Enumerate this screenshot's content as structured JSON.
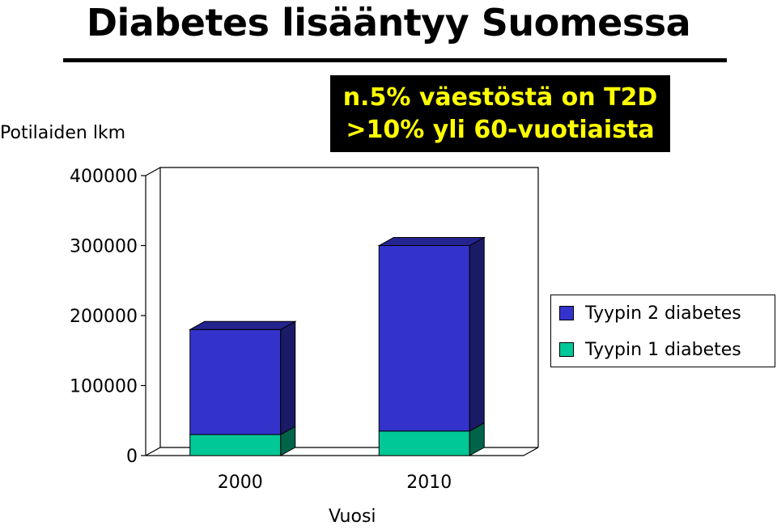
{
  "title": "Diabetes lisääntyy Suomessa",
  "callout": {
    "line1": "n.5% väestöstä on T2D",
    "line2": ">10% yli 60-vuotiaista"
  },
  "chart_data": {
    "type": "bar",
    "stacked": true,
    "three_d": true,
    "categories": [
      "2000",
      "2010"
    ],
    "series": [
      {
        "name": "Tyypin 1 diabetes",
        "values": [
          30000,
          35000
        ],
        "color": "#00c896"
      },
      {
        "name": "Tyypin 2 diabetes",
        "values": [
          150000,
          265000
        ],
        "color": "#3333cc"
      }
    ],
    "xlabel": "Vuosi",
    "ylabel": "Potilaiden lkm",
    "ylim": [
      0,
      400000
    ],
    "yticks": [
      0,
      100000,
      200000,
      300000,
      400000
    ],
    "ytick_labels": [
      "0",
      "100000",
      "200000",
      "300000",
      "400000"
    ],
    "grid": false,
    "legend_position": "right"
  },
  "legend": [
    {
      "label": "Tyypin 2 diabetes",
      "color": "#3333cc"
    },
    {
      "label": "Tyypin 1 diabetes",
      "color": "#00c896"
    }
  ]
}
